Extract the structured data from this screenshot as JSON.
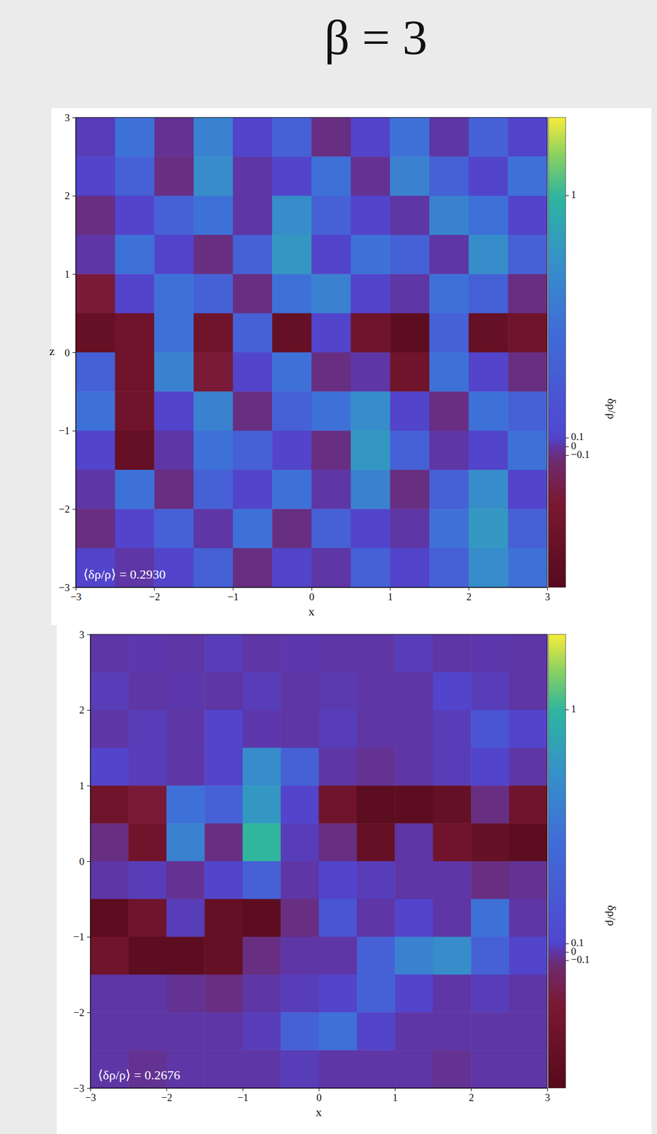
{
  "header": {
    "title": "β = 3"
  },
  "chart_data": [
    {
      "type": "heatmap",
      "xlabel": "x",
      "ylabel": "z",
      "xlim": [
        -3,
        3
      ],
      "ylim": [
        -3,
        3
      ],
      "xticks": [
        -3,
        -2,
        -1,
        0,
        1,
        2,
        3
      ],
      "yticks": [
        -3,
        -2,
        -1,
        0,
        1,
        2,
        3
      ],
      "log": true,
      "annotation": "⟨δρ/ρ⟩ = 0.2930",
      "x_bins": [
        -3,
        -2.5,
        -2,
        -1.5,
        -1,
        -0.5,
        0,
        0.5,
        1,
        1.5,
        2,
        2.5,
        3
      ],
      "y_bins": [
        3,
        2.5,
        2,
        1.5,
        1,
        0.5,
        0,
        -0.5,
        -1,
        -1.5,
        -2,
        -2.5,
        -3
      ],
      "cells": [
        [
          0.05,
          0.3,
          -0.05,
          0.4,
          0.1,
          0.2,
          -0.1,
          0.1,
          0.3,
          0.0,
          0.2,
          0.1
        ],
        [
          0.1,
          0.2,
          -0.1,
          0.5,
          0.0,
          0.1,
          0.3,
          -0.05,
          0.4,
          0.2,
          0.1,
          0.3
        ],
        [
          -0.1,
          0.1,
          0.2,
          0.3,
          0.0,
          0.5,
          0.2,
          0.1,
          0.0,
          0.4,
          0.3,
          0.1
        ],
        [
          0.0,
          0.3,
          0.1,
          -0.1,
          0.2,
          0.6,
          0.1,
          0.3,
          0.2,
          0.0,
          0.5,
          0.2
        ],
        [
          -0.15,
          0.1,
          0.3,
          0.2,
          -0.1,
          0.3,
          0.4,
          0.1,
          0.0,
          0.3,
          0.2,
          -0.1
        ],
        [
          -0.25,
          -0.2,
          0.3,
          -0.2,
          0.2,
          -0.25,
          0.1,
          -0.2,
          -0.3,
          0.2,
          -0.25,
          -0.2
        ],
        [
          0.2,
          -0.2,
          0.4,
          -0.15,
          0.1,
          0.3,
          -0.1,
          0.0,
          -0.2,
          0.3,
          0.1,
          -0.1
        ],
        [
          0.3,
          -0.2,
          0.1,
          0.4,
          -0.1,
          0.2,
          0.3,
          0.5,
          0.1,
          -0.1,
          0.3,
          0.2
        ],
        [
          0.1,
          -0.25,
          0.0,
          0.3,
          0.2,
          0.1,
          -0.1,
          0.6,
          0.2,
          0.0,
          0.1,
          0.3
        ],
        [
          0.0,
          0.3,
          -0.1,
          0.2,
          0.1,
          0.3,
          0.0,
          0.4,
          -0.1,
          0.2,
          0.5,
          0.1
        ],
        [
          -0.1,
          0.1,
          0.2,
          0.0,
          0.3,
          -0.1,
          0.2,
          0.1,
          0.0,
          0.3,
          0.6,
          0.2
        ],
        [
          0.1,
          0.0,
          0.1,
          0.2,
          -0.1,
          0.1,
          0.0,
          0.2,
          0.1,
          0.2,
          0.5,
          0.3
        ]
      ],
      "colorbar": {
        "label": "δρ/ρ",
        "range": [
          -0.35,
          2.1
        ],
        "ticks": [
          -0.1,
          0,
          0.1,
          1
        ]
      }
    },
    {
      "type": "heatmap",
      "xlabel": "x",
      "xlim": [
        -3,
        3
      ],
      "ylim": [
        -3,
        3
      ],
      "xticks": [
        -3,
        -2,
        -1,
        0,
        1,
        2,
        3
      ],
      "yticks": [
        -3,
        -2,
        -1,
        0,
        1,
        2,
        3
      ],
      "log": true,
      "annotation": "⟨δρ/ρ⟩ = 0.2676",
      "x_bins": [
        -3,
        -2.5,
        -2,
        -1.5,
        -1,
        -0.5,
        0,
        0.5,
        1,
        1.5,
        2,
        2.5,
        3
      ],
      "y_bins": [
        3,
        2.5,
        2,
        1.5,
        1,
        0.5,
        0,
        -0.5,
        -1,
        -1.5,
        -2,
        -2.5,
        -3
      ],
      "cells": [
        [
          0.0,
          0.02,
          0.0,
          0.05,
          0.0,
          0.02,
          0.0,
          0.0,
          0.05,
          0.0,
          0.02,
          0.0
        ],
        [
          0.05,
          0.0,
          0.02,
          0.0,
          0.05,
          0.0,
          0.03,
          0.0,
          0.0,
          0.1,
          0.05,
          0.0
        ],
        [
          0.0,
          0.05,
          0.0,
          0.1,
          0.02,
          0.0,
          0.05,
          0.0,
          0.0,
          0.05,
          0.15,
          0.1
        ],
        [
          0.1,
          0.05,
          0.0,
          0.1,
          0.5,
          0.2,
          0.0,
          -0.05,
          0.0,
          0.05,
          0.1,
          0.0
        ],
        [
          -0.2,
          -0.15,
          0.3,
          0.2,
          0.6,
          0.1,
          -0.2,
          -0.3,
          -0.3,
          -0.25,
          -0.1,
          -0.2
        ],
        [
          -0.1,
          -0.2,
          0.4,
          -0.1,
          1.0,
          0.05,
          -0.1,
          -0.25,
          0.0,
          -0.2,
          -0.25,
          -0.3
        ],
        [
          0.0,
          0.05,
          -0.05,
          0.1,
          0.2,
          0.0,
          0.1,
          0.05,
          0.0,
          0.0,
          -0.1,
          -0.05
        ],
        [
          -0.3,
          -0.2,
          0.05,
          -0.25,
          -0.3,
          -0.1,
          0.15,
          0.0,
          0.1,
          0.0,
          0.3,
          0.0
        ],
        [
          -0.2,
          -0.3,
          -0.3,
          -0.25,
          -0.1,
          0.0,
          0.0,
          0.2,
          0.4,
          0.5,
          0.2,
          0.1
        ],
        [
          0.0,
          0.0,
          -0.05,
          -0.1,
          0.0,
          0.05,
          0.1,
          0.2,
          0.1,
          0.0,
          0.05,
          0.0
        ],
        [
          0.0,
          0.0,
          0.0,
          0.0,
          0.05,
          0.2,
          0.3,
          0.1,
          0.0,
          0.0,
          0.0,
          0.0
        ],
        [
          0.0,
          -0.05,
          0.0,
          0.0,
          0.0,
          0.05,
          0.0,
          0.0,
          0.0,
          -0.05,
          0.0,
          0.0
        ]
      ],
      "colorbar": {
        "label": "δρ/ρ",
        "range": [
          -0.35,
          2.1
        ],
        "ticks": [
          -0.1,
          0,
          0.1,
          1
        ]
      }
    }
  ]
}
